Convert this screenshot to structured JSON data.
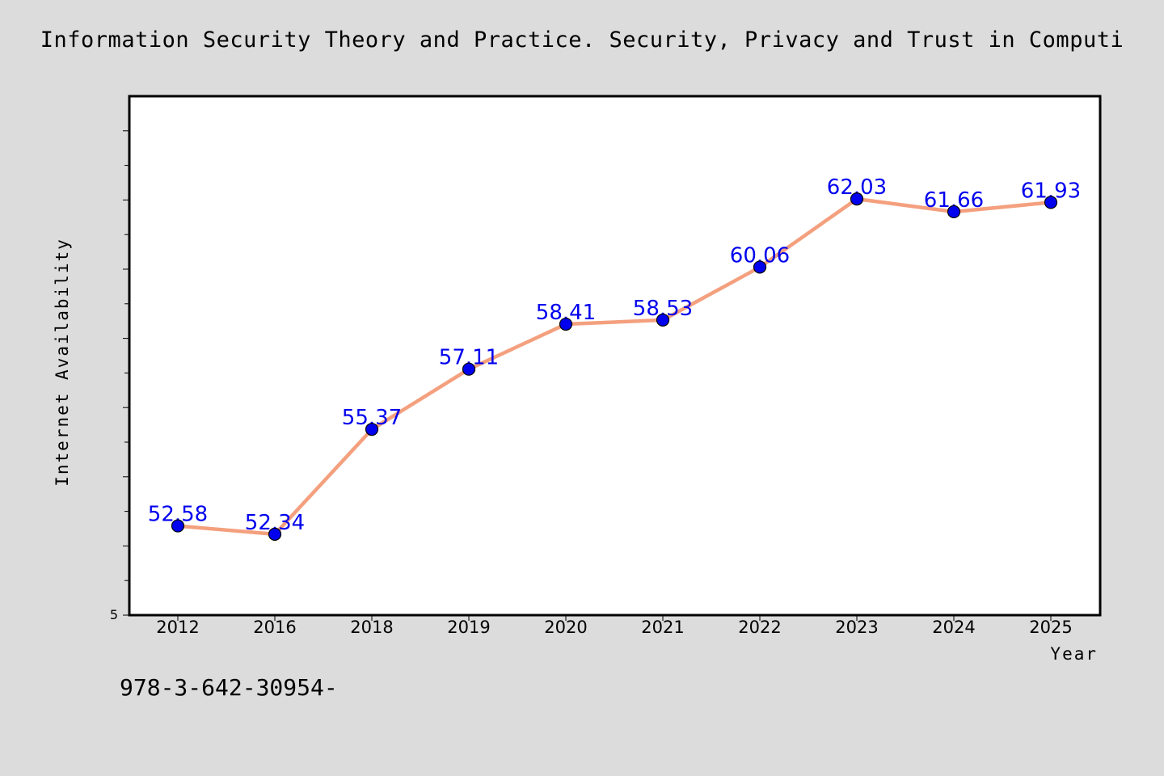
{
  "page": {
    "background": "#dcdcdc",
    "footnote": "978-3-642-30954-"
  },
  "chart_data": {
    "type": "line",
    "title": "Information Security Theory and Practice. Security, Privacy and Trust in Computi",
    "xlabel": "Year",
    "ylabel": "Internet Availability",
    "categories": [
      "2012",
      "2016",
      "2018",
      "2019",
      "2020",
      "2021",
      "2022",
      "2023",
      "2024",
      "2025"
    ],
    "series": [
      {
        "values": [
          52.58,
          52.34,
          55.37,
          57.11,
          58.41,
          58.53,
          60.06,
          62.03,
          61.66,
          61.93
        ],
        "data_labels": [
          "52.58",
          "52.34",
          "55.37",
          "57.11",
          "58.41",
          "58.53",
          "60.06",
          "62.03",
          "61.66",
          "61.93"
        ],
        "line_color": "#f4a07e",
        "marker_color": "#0000ee",
        "label_color": "#0000ee"
      }
    ],
    "ylim": [
      50.0,
      65.0
    ],
    "y_tick_labels": [
      "5"
    ],
    "grid": false,
    "legend": "none",
    "plot_background": "#ffffff",
    "frame_color": "#000000"
  }
}
